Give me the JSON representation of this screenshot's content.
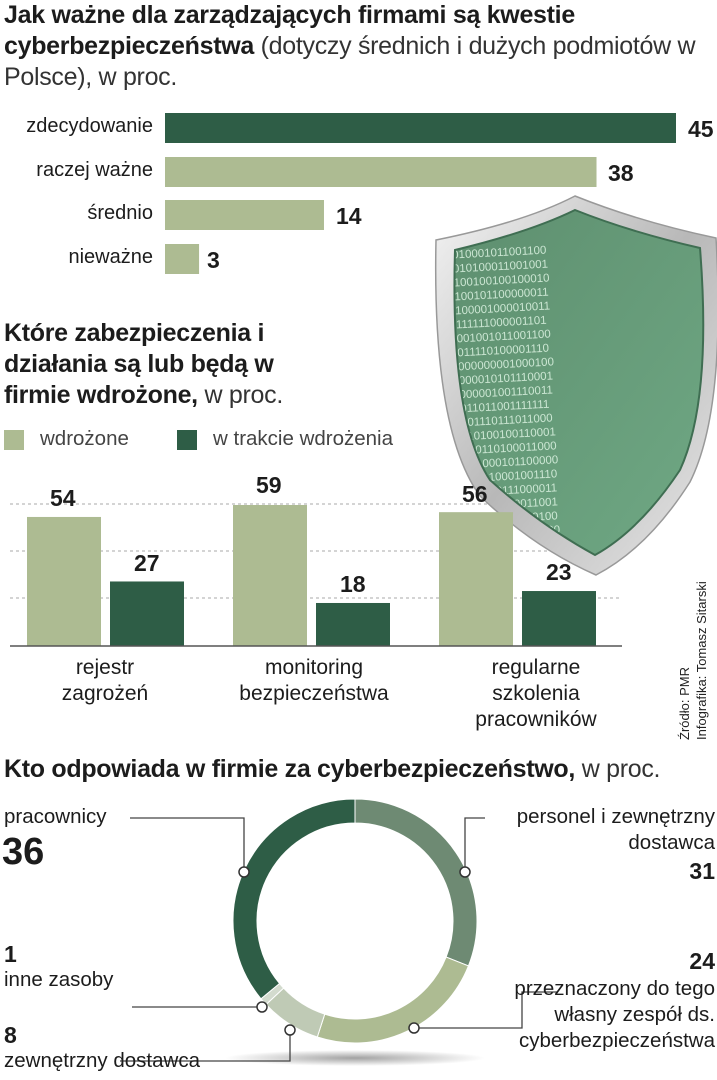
{
  "colors": {
    "dark": "#2e5d46",
    "light": "#adbb92",
    "mid": "#6e8a73",
    "pale": "#bfcab5",
    "paler": "#d3dbce"
  },
  "section1": {
    "title_bold": "Jak ważne dla zarządzających firmami są kwestie cyberbezpieczeństwa",
    "title_rest": " (dotyczy średnich i dużych podmiotów w Polsce), w proc."
  },
  "section2": {
    "title_bold": "Które zabezpieczenia i działania są lub będą w firmie wdrożone,",
    "title_rest": " w proc.",
    "legend": [
      "wdrożone",
      "w trakcie wdrożenia"
    ]
  },
  "section3": {
    "title_bold": "Kto odpowiada w firmie za cyberbezpieczeństwo,",
    "title_rest": " w proc."
  },
  "credits": {
    "source": "Źródło: PMR",
    "infographic": "Infografika: Tomasz Sitarski"
  },
  "chart_data": [
    {
      "type": "bar",
      "orientation": "horizontal",
      "categories": [
        "zdecydowanie",
        "raczej ważne",
        "średnio",
        "nieważne"
      ],
      "values": [
        45,
        38,
        14,
        3
      ],
      "colors": [
        "#2e5d46",
        "#adbb92",
        "#adbb92",
        "#adbb92"
      ]
    },
    {
      "type": "bar",
      "categories": [
        "rejestr zagrożeń",
        "monitoring bezpieczeństwa",
        "regularne szkolenia pracowników"
      ],
      "series": [
        {
          "name": "wdrożone",
          "values": [
            54,
            59,
            56
          ],
          "color": "#adbb92"
        },
        {
          "name": "w trakcie wdrożenia",
          "values": [
            27,
            18,
            23
          ],
          "color": "#2e5d46"
        }
      ]
    },
    {
      "type": "pie",
      "variant": "donut",
      "slices": [
        {
          "label": "pracownicy",
          "value": 36,
          "color": "#2e5d46"
        },
        {
          "label": "personel i zewnętrzny dostawca",
          "value": 31,
          "color": "#6e8a73"
        },
        {
          "label": "przeznaczony do tego własny zespół ds. cyberbezpieczeństwa",
          "value": 24,
          "color": "#adbb92"
        },
        {
          "label": "zewnętrzny dostawca",
          "value": 8,
          "color": "#bfcab5"
        },
        {
          "label": "inne zasoby",
          "value": 1,
          "color": "#d3dbce"
        }
      ]
    }
  ]
}
